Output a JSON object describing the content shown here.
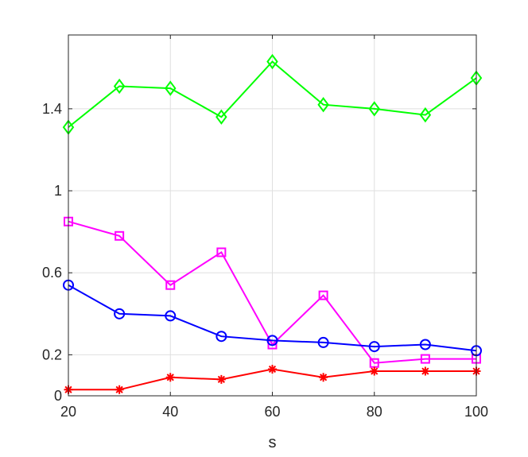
{
  "chart_data": {
    "type": "line",
    "title": "",
    "xlabel": "s",
    "ylabel": "",
    "xlim": [
      20,
      100
    ],
    "ylim": [
      0,
      1.76
    ],
    "xticks": [
      20,
      40,
      60,
      80,
      100
    ],
    "xtick_labels": [
      "20",
      "40",
      "60",
      "80",
      "100"
    ],
    "yticks": [
      0,
      0.2,
      0.6,
      1,
      1.4
    ],
    "ytick_labels": [
      "0",
      "0.2",
      "0.6",
      "1",
      "1.4"
    ],
    "grid": true,
    "x": [
      20,
      30,
      40,
      50,
      60,
      70,
      80,
      90,
      100
    ],
    "series": [
      {
        "color": "#00ff00",
        "marker": "diamond",
        "values": [
          1.31,
          1.51,
          1.5,
          1.36,
          1.63,
          1.42,
          1.4,
          1.37,
          1.55
        ]
      },
      {
        "color": "#ff00ff",
        "marker": "square",
        "values": [
          0.85,
          0.78,
          0.54,
          0.7,
          0.25,
          0.49,
          0.16,
          0.18,
          0.18
        ]
      },
      {
        "color": "#0000ff",
        "marker": "circle",
        "values": [
          0.54,
          0.4,
          0.39,
          0.29,
          0.27,
          0.26,
          0.24,
          0.25,
          0.22
        ]
      },
      {
        "color": "#ff0000",
        "marker": "asterisk",
        "values": [
          0.03,
          0.03,
          0.09,
          0.08,
          0.13,
          0.09,
          0.12,
          0.12,
          0.12
        ]
      }
    ]
  }
}
